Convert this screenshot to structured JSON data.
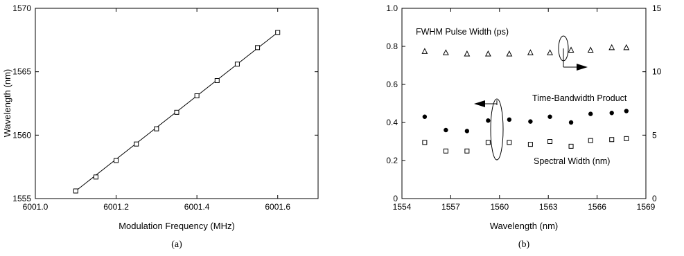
{
  "chart_data": [
    {
      "type": "scatter",
      "panel_label": "(a)",
      "xlabel": "Modulation Frequency (MHz)",
      "ylabel": "Wavelength (nm)",
      "xlim": [
        6001.0,
        6001.7
      ],
      "ylim": [
        1555,
        1570
      ],
      "xticks": [
        "6001.0",
        "6001.2",
        "6001.4",
        "6001.6"
      ],
      "yticks": [
        "1555",
        "1560",
        "1565",
        "1570"
      ],
      "grid": false,
      "series": [
        {
          "marker": "open-square",
          "x": [
            6001.1,
            6001.15,
            6001.2,
            6001.25,
            6001.3,
            6001.35,
            6001.4,
            6001.45,
            6001.5,
            6001.55,
            6001.6
          ],
          "y": [
            1555.6,
            1556.7,
            1558.0,
            1559.3,
            1560.5,
            1561.8,
            1563.1,
            1564.3,
            1565.6,
            1566.9,
            1568.1
          ]
        }
      ],
      "fit_line": {
        "x": [
          6001.1,
          6001.6
        ],
        "y": [
          1555.6,
          1568.1
        ]
      }
    },
    {
      "type": "scatter",
      "panel_label": "(b)",
      "xlabel": "Wavelength (nm)",
      "ylabel": "",
      "ylabel_right": "",
      "xlim": [
        1554,
        1569
      ],
      "ylim": [
        0,
        1.0
      ],
      "ylim_right": [
        0,
        15
      ],
      "xticks": [
        "1554",
        "1557",
        "1560",
        "1563",
        "1566",
        "1569"
      ],
      "yticks": [
        "0",
        "0.2",
        "0.4",
        "0.6",
        "0.8",
        "1.0"
      ],
      "yticks_right": [
        "0",
        "5",
        "10",
        "15"
      ],
      "grid": false,
      "annotations": [
        "FWHM Pulse Width (ps)",
        "Time-Bandwidth Product",
        "Spectral Width (nm)"
      ],
      "series": [
        {
          "axis": "right",
          "marker": "open-triangle",
          "x": [
            1555.4,
            1556.7,
            1558.0,
            1559.3,
            1560.6,
            1561.9,
            1563.1,
            1564.4,
            1565.6,
            1566.9,
            1567.8
          ],
          "y": [
            11.6,
            11.5,
            11.4,
            11.4,
            11.4,
            11.5,
            11.5,
            11.7,
            11.7,
            11.9,
            11.9
          ]
        },
        {
          "axis": "left",
          "marker": "filled-circle",
          "x": [
            1555.4,
            1556.7,
            1558.0,
            1559.3,
            1560.6,
            1561.9,
            1563.1,
            1564.4,
            1565.6,
            1566.9,
            1567.8
          ],
          "y": [
            0.43,
            0.36,
            0.355,
            0.41,
            0.415,
            0.405,
            0.43,
            0.4,
            0.445,
            0.45,
            0.46
          ]
        },
        {
          "axis": "left",
          "marker": "open-square",
          "x": [
            1555.4,
            1556.7,
            1558.0,
            1559.3,
            1560.6,
            1561.9,
            1563.1,
            1564.4,
            1565.6,
            1566.9,
            1567.8
          ],
          "y": [
            0.295,
            0.25,
            0.25,
            0.295,
            0.295,
            0.285,
            0.3,
            0.275,
            0.305,
            0.31,
            0.315
          ]
        }
      ]
    }
  ]
}
